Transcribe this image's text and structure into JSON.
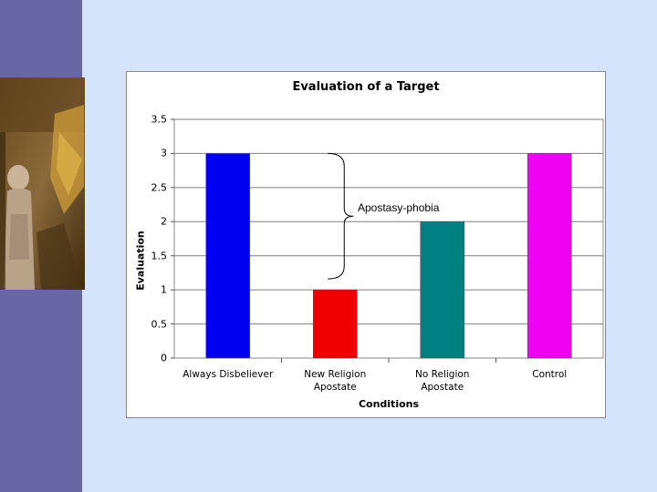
{
  "colors": {
    "background": "#d5e4fb",
    "sidebar": "#6767a5"
  },
  "chart_data": {
    "type": "bar",
    "title": "Evaluation of a Target",
    "xlabel": "Conditions",
    "ylabel": "Evaluation",
    "ylim": [
      0,
      3.5
    ],
    "ytick_step": 0.5,
    "yticks": [
      "0",
      "0.5",
      "1",
      "1.5",
      "2",
      "2.5",
      "3",
      "3.5"
    ],
    "grid": true,
    "categories": [
      "Always Disbeliever",
      "New Religion\nApostate",
      "No Religion\nApostate",
      "Control"
    ],
    "values": [
      3,
      1,
      2,
      3
    ],
    "bar_colors": [
      "#0000f0",
      "#f00000",
      "#008080",
      "#f000f0"
    ],
    "annotation": {
      "text": "Apostasy-phobia",
      "spans_categories": [
        "New Religion\nApostate",
        "No Religion\nApostate"
      ]
    }
  }
}
